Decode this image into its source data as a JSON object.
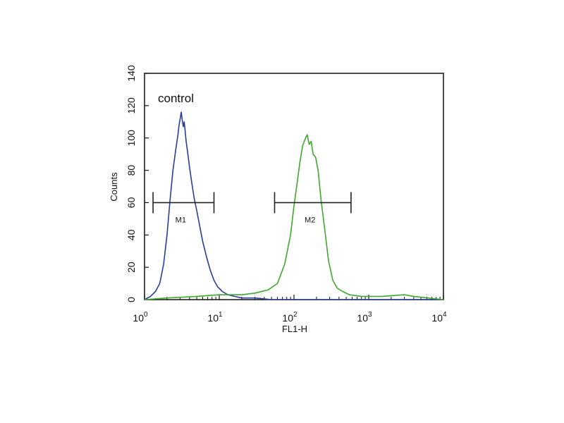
{
  "chart_data": {
    "type": "line",
    "title": "",
    "xlabel": "FL1-H",
    "ylabel": "Counts",
    "xscale": "log",
    "xlim": [
      1,
      10000
    ],
    "ylim": [
      0,
      140
    ],
    "grid": false,
    "x_tick_labels": [
      {
        "base": "10",
        "exp": "0"
      },
      {
        "base": "10",
        "exp": "1"
      },
      {
        "base": "10",
        "exp": "2"
      },
      {
        "base": "10",
        "exp": "3"
      },
      {
        "base": "10",
        "exp": "4"
      }
    ],
    "x_ticks": [
      1,
      10,
      100,
      1000,
      10000
    ],
    "y_ticks": [
      0,
      20,
      40,
      60,
      80,
      100,
      120,
      140
    ],
    "annotation": "control",
    "markers": [
      {
        "label": "M1",
        "x_start": 1.3,
        "x_end": 8.5,
        "y": 60
      },
      {
        "label": "M2",
        "x_start": 55,
        "x_end": 580,
        "y": 60
      }
    ],
    "series": [
      {
        "color": "#2a3d9a",
        "x": [
          1.0,
          1.2,
          1.4,
          1.6,
          1.8,
          2.0,
          2.2,
          2.4,
          2.6,
          2.8,
          2.9,
          3.0,
          3.1,
          3.2,
          3.3,
          3.4,
          3.5,
          3.6,
          3.8,
          4.0,
          4.3,
          4.6,
          5.0,
          5.5,
          6.0,
          6.8,
          7.6,
          8.5,
          9.5,
          11,
          13,
          16,
          20,
          30,
          50,
          100,
          300,
          1000,
          10000
        ],
        "y": [
          0,
          2,
          5,
          10,
          22,
          40,
          62,
          80,
          92,
          102,
          108,
          112,
          116,
          111,
          107,
          110,
          104,
          98,
          90,
          82,
          72,
          63,
          55,
          45,
          36,
          26,
          18,
          12,
          8,
          5,
          3,
          2,
          1,
          1,
          0,
          0,
          0,
          0,
          0
        ]
      },
      {
        "color": "#3fa82e",
        "x": [
          1.0,
          2.0,
          5.0,
          10,
          20,
          30,
          45,
          60,
          75,
          90,
          100,
          110,
          120,
          130,
          140,
          150,
          160,
          170,
          180,
          195,
          210,
          230,
          260,
          290,
          330,
          380,
          450,
          550,
          800,
          1500,
          3000,
          4000,
          10000
        ],
        "y": [
          0,
          1,
          2,
          3,
          3,
          4,
          6,
          10,
          22,
          40,
          58,
          72,
          85,
          95,
          99,
          102,
          96,
          98,
          90,
          88,
          80,
          62,
          42,
          24,
          12,
          7,
          5,
          3,
          2,
          2,
          3,
          2,
          0
        ]
      }
    ]
  }
}
